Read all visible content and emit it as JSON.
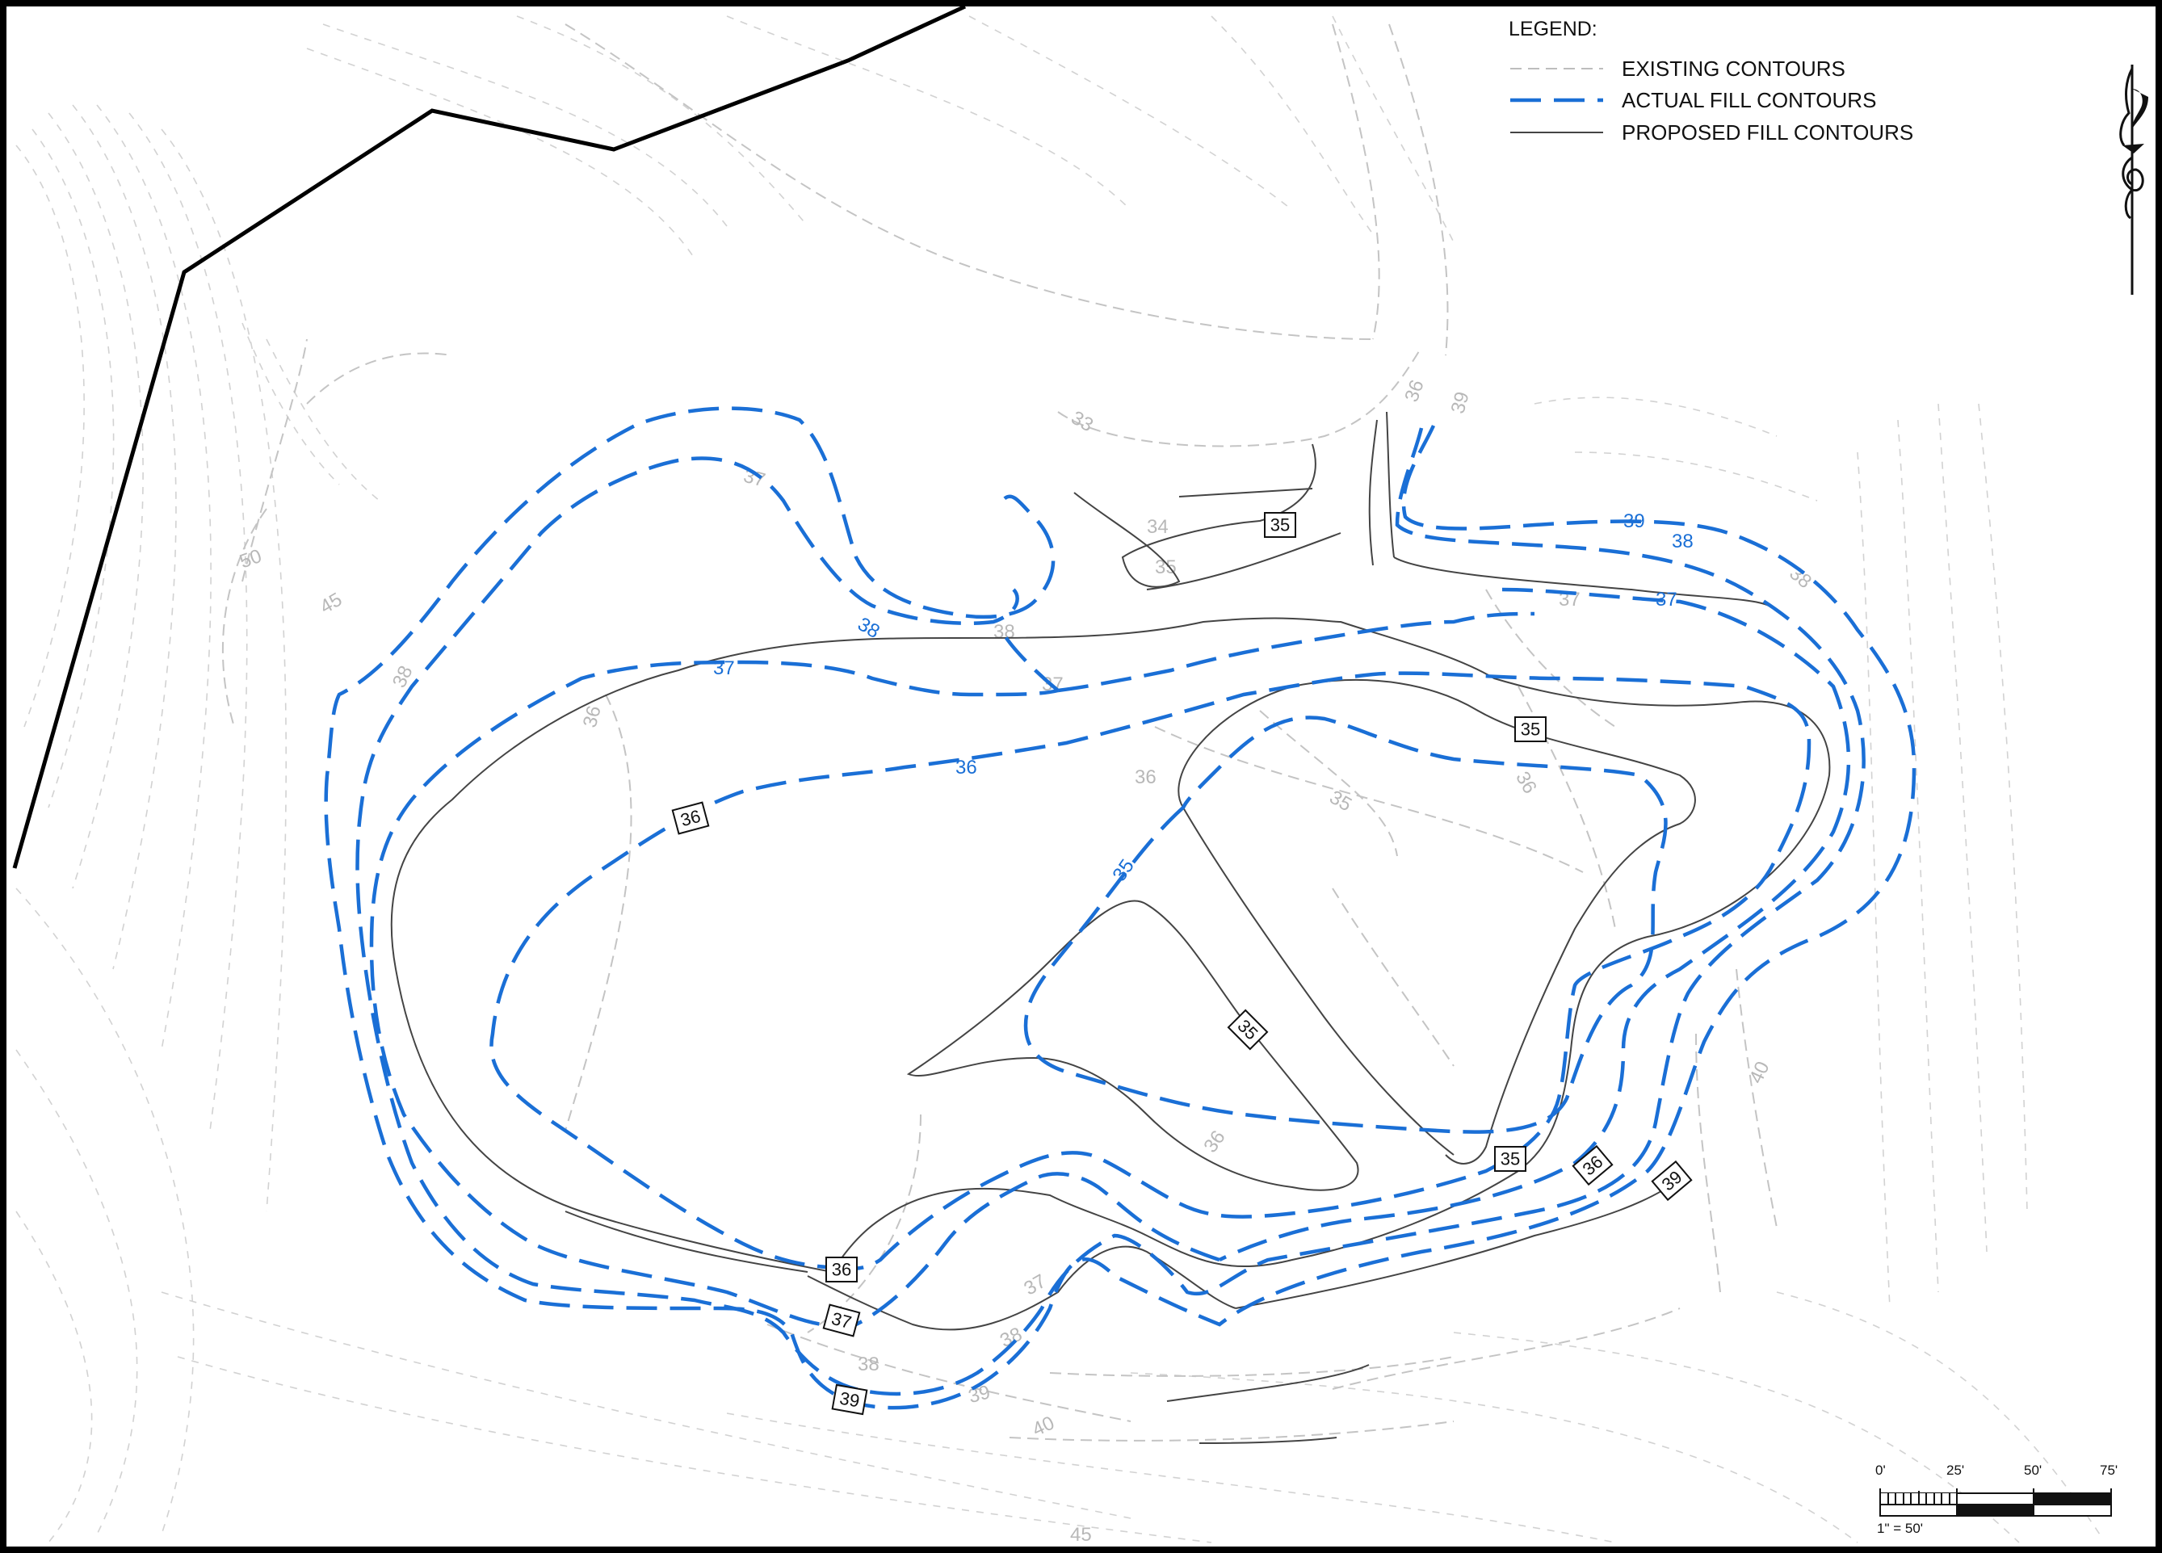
{
  "legend": {
    "title": "LEGEND:",
    "existing": "EXISTING CONTOURS",
    "actual": "ACTUAL FILL CONTOURS",
    "proposed": "PROPOSED FILL CONTOURS"
  },
  "colors": {
    "actual": "#1a6fd6",
    "existing": "#c4c4c4",
    "proposed": "#444444",
    "boundary": "#000000"
  },
  "icons": {
    "north_arrow": "north-arrow-icon"
  },
  "existing_labels": [
    "33",
    "34",
    "35",
    "36",
    "37",
    "38",
    "39",
    "40",
    "45",
    "50"
  ],
  "actual_labels": [
    "35",
    "36",
    "37",
    "38",
    "39"
  ],
  "proposed_tags": [
    "35",
    "36",
    "37",
    "39"
  ],
  "scale_bar": {
    "ticks": [
      "0'",
      "25'",
      "50'",
      "75'"
    ],
    "ratio": "1\" = 50'"
  }
}
